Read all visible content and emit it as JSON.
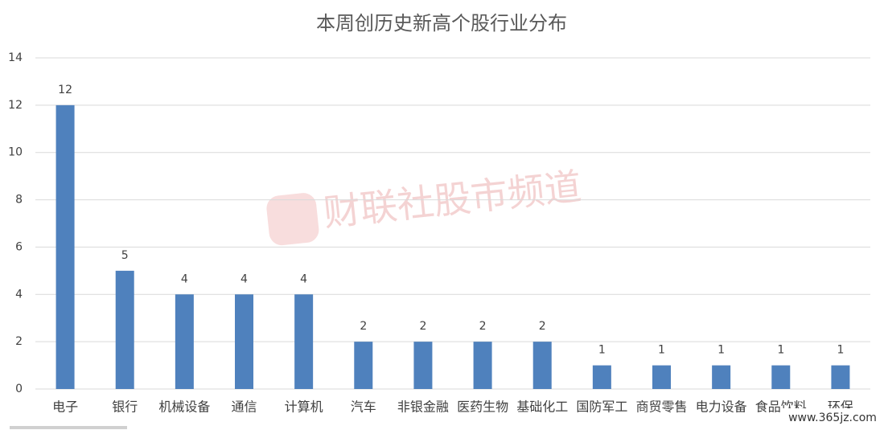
{
  "chart_data": {
    "type": "bar",
    "title": "本周创历史新高个股行业分布",
    "categories": [
      "电子",
      "银行",
      "机械设备",
      "通信",
      "计算机",
      "汽车",
      "非银金融",
      "医药生物",
      "基础化工",
      "国防军工",
      "商贸零售",
      "电力设备",
      "食品饮料",
      "环保"
    ],
    "values": [
      12,
      5,
      4,
      4,
      4,
      2,
      2,
      2,
      2,
      1,
      1,
      1,
      1,
      1
    ],
    "color": "#4f81bd",
    "ylim": [
      0,
      14
    ],
    "yticks": [
      0,
      2,
      4,
      6,
      8,
      10,
      12,
      14
    ],
    "grid": true,
    "watermark": "财联社股市频道",
    "source": "www.365jz.com"
  }
}
